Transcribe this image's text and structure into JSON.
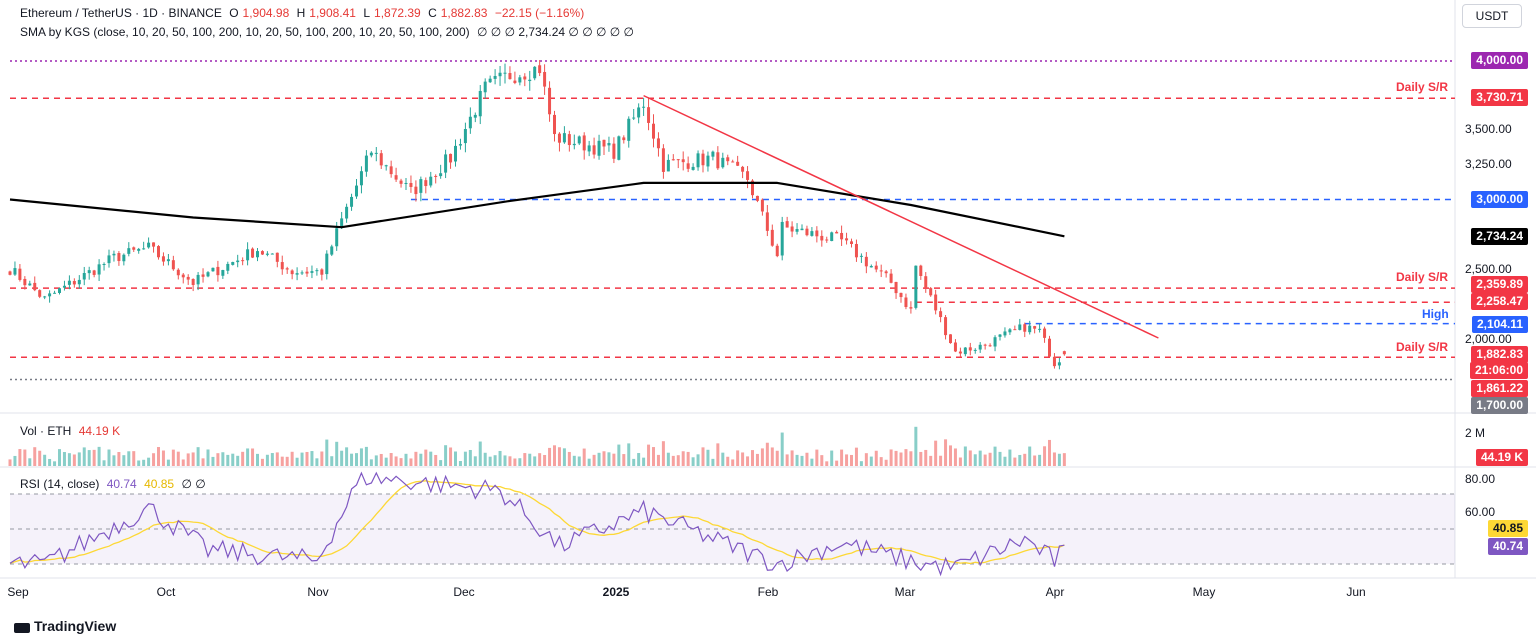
{
  "header": {
    "symbol": "Ethereum / TetherUS · 1D · BINANCE",
    "o_label": "O",
    "o_value": "1,904.98",
    "h_label": "H",
    "h_value": "1,908.41",
    "l_label": "L",
    "l_value": "1,872.39",
    "c_label": "C",
    "c_value": "1,882.83",
    "change": "−22.15 (−1.16%)",
    "sma_label": "SMA by KGS (close, 10, 20, 50, 100, 200, 10, 20, 50, 100, 200, 10, 20, 50, 100, 200)",
    "sma_values": "∅  ∅  ∅  2,734.24  ∅  ∅  ∅  ∅  ∅",
    "currency_button": "USDT"
  },
  "volume_legend": {
    "label": "Vol · ETH",
    "value": "44.19 K"
  },
  "rsi_legend": {
    "label": "RSI (14, close)",
    "rsi": "40.74",
    "ma": "40.85",
    "tail": "∅  ∅"
  },
  "price_axis": {
    "ticks": [
      "3,500.00",
      "3,250.00",
      "2,500.00",
      "2,000.00"
    ],
    "labels": [
      {
        "text": "4,000.00",
        "color": "#9c27b0"
      },
      {
        "text": "3,730.71",
        "color": "#f23645"
      },
      {
        "text": "3,000.00",
        "color": "#2962ff"
      },
      {
        "text": "2,734.24",
        "color": "#000000"
      },
      {
        "text": "2,359.89",
        "color": "#f23645"
      },
      {
        "text": "2,258.47",
        "color": "#f23645"
      },
      {
        "text": "2,104.11",
        "color": "#2962ff"
      },
      {
        "text": "1,882.83",
        "color": "#f23645"
      },
      {
        "text": "21:06:00",
        "color": "#f23645"
      },
      {
        "text": "1,861.22",
        "color": "#f23645"
      },
      {
        "text": "1,700.00",
        "color": "#787b86"
      }
    ]
  },
  "volume_axis": {
    "tick": "2 M",
    "current": "44.19 K"
  },
  "rsi_axis": {
    "ticks": [
      "80.00",
      "60.00"
    ],
    "ma_label": "40.85",
    "rsi_label": "40.74"
  },
  "annotations": {
    "daily_sr_top": "Daily S/R",
    "daily_sr_mid": "Daily S/R",
    "high": "High",
    "daily_sr_low": "Daily S/R"
  },
  "time_axis": [
    "Sep",
    "Oct",
    "Nov",
    "Dec",
    "2025",
    "Feb",
    "Mar",
    "Apr",
    "May",
    "Jun"
  ],
  "footer": "TradingView",
  "colors": {
    "up": "#26a69a",
    "down": "#ef5350",
    "sma": "#000000",
    "rsi": "#7e57c2",
    "rsi_ma": "#fdd835",
    "trend": "#f23645",
    "resistance": "#f23645",
    "support_blue": "#2962ff",
    "level_purple": "#9c27b0"
  },
  "chart_data": {
    "type": "candlestick",
    "title": "Ethereum / TetherUS · 1D · BINANCE",
    "x_range": [
      "2024-08-31",
      "2025-04-01"
    ],
    "price_range": [
      1700,
      4000
    ],
    "price_key_closes": [
      [
        "2024-08-31",
        2500
      ],
      [
        "2024-09-07",
        2280
      ],
      [
        "2024-09-21",
        2580
      ],
      [
        "2024-09-28",
        2650
      ],
      [
        "2024-10-07",
        2400
      ],
      [
        "2024-10-20",
        2640
      ],
      [
        "2024-10-27",
        2480
      ],
      [
        "2024-11-02",
        2480
      ],
      [
        "2024-11-06",
        2850
      ],
      [
        "2024-11-12",
        3350
      ],
      [
        "2024-11-20",
        3050
      ],
      [
        "2024-11-28",
        3300
      ],
      [
        "2024-12-05",
        3800
      ],
      [
        "2024-12-10",
        3900
      ],
      [
        "2024-12-16",
        3950
      ],
      [
        "2024-12-19",
        3450
      ],
      [
        "2024-12-31",
        3350
      ],
      [
        "2025-01-06",
        3700
      ],
      [
        "2025-01-10",
        3250
      ],
      [
        "2025-01-20",
        3300
      ],
      [
        "2025-01-27",
        3150
      ],
      [
        "2025-02-02",
        2600
      ],
      [
        "2025-02-03",
        2800
      ],
      [
        "2025-02-15",
        2700
      ],
      [
        "2025-02-25",
        2400
      ],
      [
        "2025-03-01",
        2200
      ],
      [
        "2025-03-02",
        2520
      ],
      [
        "2025-03-10",
        1900
      ],
      [
        "2025-03-15",
        1940
      ],
      [
        "2025-03-24",
        2080
      ],
      [
        "2025-03-27",
        2050
      ],
      [
        "2025-03-30",
        1820
      ],
      [
        "2025-04-01",
        1883
      ]
    ],
    "last_candle": {
      "open": 1904.98,
      "high": 1908.41,
      "low": 1872.39,
      "close": 1882.83,
      "change": -22.15,
      "change_pct": -1.16
    },
    "sma200": [
      [
        "2024-08-31",
        3000
      ],
      [
        "2024-10-07",
        2870
      ],
      [
        "2024-11-06",
        2800
      ],
      [
        "2024-12-10",
        2990
      ],
      [
        "2025-01-06",
        3120
      ],
      [
        "2025-02-02",
        3120
      ],
      [
        "2025-03-01",
        2960
      ],
      [
        "2025-04-01",
        2734.24
      ]
    ],
    "levels": [
      {
        "price": 4000.0,
        "style": "dotted",
        "color": "#9c27b0"
      },
      {
        "price": 3730.71,
        "label": "Daily S/R",
        "style": "dashed",
        "color": "#f23645"
      },
      {
        "price": 3000.0,
        "style": "dashed",
        "color": "#2962ff"
      },
      {
        "price": 2359.89,
        "label": "Daily S/R",
        "style": "dashed",
        "color": "#f23645"
      },
      {
        "price": 2258.47,
        "style": "dashed",
        "color": "#f23645"
      },
      {
        "price": 2104.11,
        "label": "High",
        "style": "dashed",
        "color": "#2962ff"
      },
      {
        "price": 1861.22,
        "label": "Daily S/R",
        "style": "dashed",
        "color": "#f23645"
      },
      {
        "price": 1700.0,
        "style": "dotted",
        "color": "#787b86"
      }
    ],
    "trendline": [
      [
        "2025-01-06",
        3750
      ],
      [
        "2025-04-20",
        2000
      ]
    ],
    "volume": {
      "last": "44.19 K",
      "max_tick": "2 M"
    },
    "rsi": {
      "period": 14,
      "value": 40.74,
      "ma": 40.85,
      "upper": 70,
      "middle": 50,
      "lower": 30,
      "key_points": [
        [
          "2024-09-07",
          30
        ],
        [
          "2024-09-28",
          62
        ],
        [
          "2024-10-10",
          38
        ],
        [
          "2024-11-01",
          32
        ],
        [
          "2024-11-10",
          80
        ],
        [
          "2024-12-08",
          72
        ],
        [
          "2024-12-20",
          40
        ],
        [
          "2025-01-06",
          60
        ],
        [
          "2025-02-02",
          30
        ],
        [
          "2025-02-15",
          42
        ],
        [
          "2025-03-03",
          30
        ],
        [
          "2025-03-10",
          28
        ],
        [
          "2025-03-24",
          44
        ],
        [
          "2025-03-30",
          32
        ],
        [
          "2025-04-01",
          40.74
        ]
      ]
    }
  }
}
